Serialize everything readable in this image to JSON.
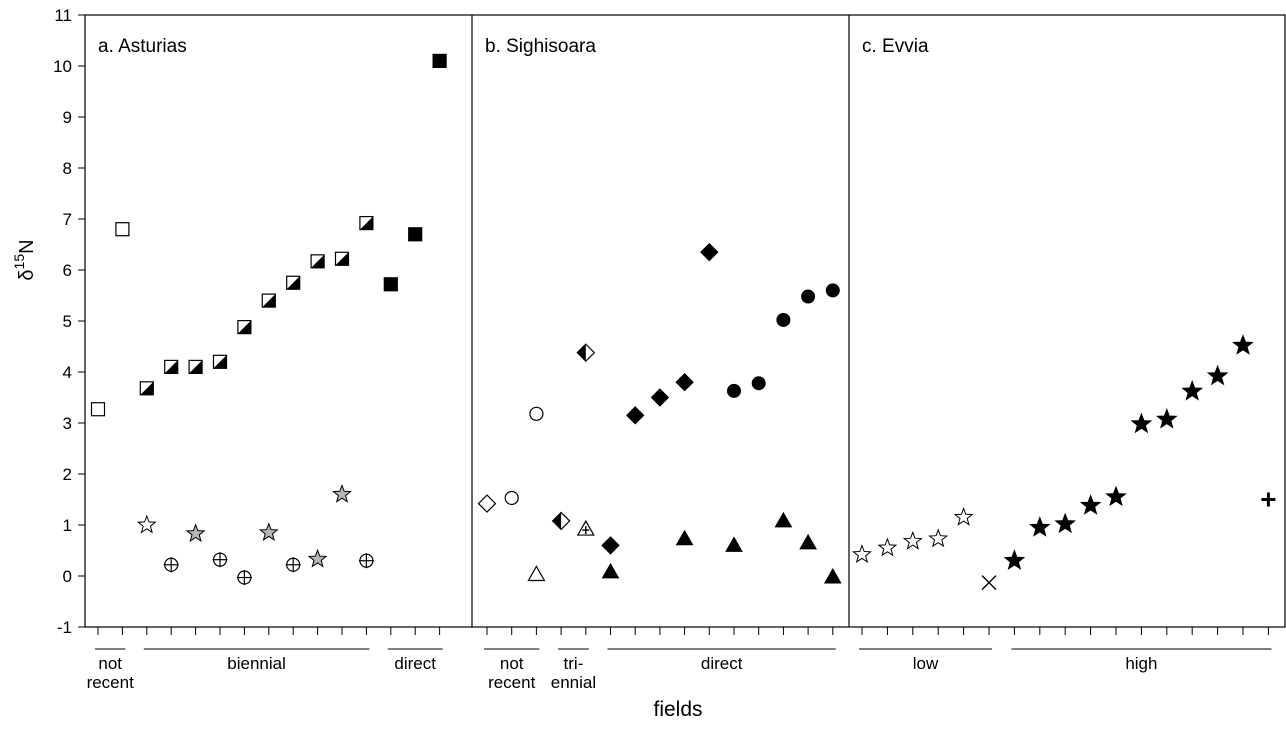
{
  "chart_data": {
    "type": "scatter",
    "xlabel": "fields",
    "ylabel": "δ15N",
    "ylim": [
      -1,
      11
    ],
    "yticks": [
      "-1",
      "0",
      "1",
      "2",
      "3",
      "4",
      "5",
      "6",
      "7",
      "8",
      "9",
      "10",
      "11"
    ],
    "panels": [
      {
        "title": "a. Asturias",
        "ticks": 15,
        "groups": [
          {
            "label": [
              "not",
              "recent"
            ],
            "from": 0,
            "to": 1
          },
          {
            "label": [
              "biennial"
            ],
            "from": 2,
            "to": 11
          },
          {
            "label": [
              "direct"
            ],
            "from": 12,
            "to": 14
          }
        ],
        "points": [
          {
            "x": 0,
            "y": 3.27,
            "marker": "square-open"
          },
          {
            "x": 1,
            "y": 6.8,
            "marker": "square-open"
          },
          {
            "x": 2,
            "y": 3.68,
            "marker": "square-half"
          },
          {
            "x": 2,
            "y": 1.0,
            "marker": "star-open"
          },
          {
            "x": 3,
            "y": 4.1,
            "marker": "square-half"
          },
          {
            "x": 3,
            "y": 0.22,
            "marker": "circle-cross"
          },
          {
            "x": 4,
            "y": 4.1,
            "marker": "square-half"
          },
          {
            "x": 4,
            "y": 0.83,
            "marker": "star-gray"
          },
          {
            "x": 5,
            "y": 4.2,
            "marker": "square-half"
          },
          {
            "x": 5,
            "y": 0.32,
            "marker": "circle-cross"
          },
          {
            "x": 6,
            "y": 4.88,
            "marker": "square-half"
          },
          {
            "x": 6,
            "y": -0.03,
            "marker": "circle-cross"
          },
          {
            "x": 7,
            "y": 5.4,
            "marker": "square-half"
          },
          {
            "x": 7,
            "y": 0.85,
            "marker": "star-gray"
          },
          {
            "x": 8,
            "y": 5.75,
            "marker": "square-half"
          },
          {
            "x": 8,
            "y": 0.22,
            "marker": "circle-cross"
          },
          {
            "x": 9,
            "y": 6.17,
            "marker": "square-half"
          },
          {
            "x": 9,
            "y": 0.33,
            "marker": "star-gray"
          },
          {
            "x": 10,
            "y": 6.22,
            "marker": "square-half"
          },
          {
            "x": 10,
            "y": 1.6,
            "marker": "star-gray"
          },
          {
            "x": 11,
            "y": 6.92,
            "marker": "square-half"
          },
          {
            "x": 11,
            "y": 0.3,
            "marker": "circle-cross"
          },
          {
            "x": 12,
            "y": 5.72,
            "marker": "square-filled"
          },
          {
            "x": 13,
            "y": 6.7,
            "marker": "square-filled"
          },
          {
            "x": 14,
            "y": 10.1,
            "marker": "square-filled"
          }
        ]
      },
      {
        "title": "b. Sighisoara",
        "ticks": 15,
        "groups": [
          {
            "label": [
              "not",
              "recent"
            ],
            "from": 0,
            "to": 2
          },
          {
            "label": [
              "tri-",
              "ennial"
            ],
            "from": 3,
            "to": 4
          },
          {
            "label": [
              "direct"
            ],
            "from": 5,
            "to": 14
          }
        ],
        "points": [
          {
            "x": 0,
            "y": 1.42,
            "marker": "diamond-open"
          },
          {
            "x": 1,
            "y": 1.53,
            "marker": "circle-open"
          },
          {
            "x": 2,
            "y": 3.18,
            "marker": "circle-open"
          },
          {
            "x": 2,
            "y": 0.03,
            "marker": "triangle-open"
          },
          {
            "x": 3,
            "y": 1.08,
            "marker": "diamond-half"
          },
          {
            "x": 4,
            "y": 4.38,
            "marker": "diamond-half"
          },
          {
            "x": 4,
            "y": 0.92,
            "marker": "triangle-plus"
          },
          {
            "x": 5,
            "y": 0.6,
            "marker": "diamond-filled"
          },
          {
            "x": 5,
            "y": 0.08,
            "marker": "triangle-filled"
          },
          {
            "x": 6,
            "y": 3.15,
            "marker": "diamond-filled"
          },
          {
            "x": 7,
            "y": 3.5,
            "marker": "diamond-filled"
          },
          {
            "x": 8,
            "y": 3.8,
            "marker": "diamond-filled"
          },
          {
            "x": 8,
            "y": 0.73,
            "marker": "triangle-filled"
          },
          {
            "x": 9,
            "y": 6.35,
            "marker": "diamond-filled"
          },
          {
            "x": 10,
            "y": 3.63,
            "marker": "circle-filled"
          },
          {
            "x": 10,
            "y": 0.6,
            "marker": "triangle-filled"
          },
          {
            "x": 11,
            "y": 3.78,
            "marker": "circle-filled"
          },
          {
            "x": 12,
            "y": 5.02,
            "marker": "circle-filled"
          },
          {
            "x": 12,
            "y": 1.08,
            "marker": "triangle-filled"
          },
          {
            "x": 13,
            "y": 5.48,
            "marker": "circle-filled"
          },
          {
            "x": 13,
            "y": 0.65,
            "marker": "triangle-filled"
          },
          {
            "x": 14,
            "y": 5.6,
            "marker": "circle-filled"
          },
          {
            "x": 14,
            "y": -0.02,
            "marker": "triangle-filled"
          }
        ]
      },
      {
        "title": "c. Evvia",
        "ticks": 17,
        "groups": [
          {
            "label": [
              "low"
            ],
            "from": 0,
            "to": 5
          },
          {
            "label": [
              "high"
            ],
            "from": 6,
            "to": 16
          }
        ],
        "points": [
          {
            "x": 0,
            "y": 0.42,
            "marker": "star-open"
          },
          {
            "x": 1,
            "y": 0.55,
            "marker": "star-open"
          },
          {
            "x": 2,
            "y": 0.68,
            "marker": "star-open"
          },
          {
            "x": 3,
            "y": 0.73,
            "marker": "star-open"
          },
          {
            "x": 4,
            "y": 1.15,
            "marker": "star-open"
          },
          {
            "x": 5,
            "y": -0.13,
            "marker": "x-mark"
          },
          {
            "x": 6,
            "y": 0.3,
            "marker": "star-filled"
          },
          {
            "x": 7,
            "y": 0.95,
            "marker": "star-filled"
          },
          {
            "x": 8,
            "y": 1.02,
            "marker": "star-filled"
          },
          {
            "x": 9,
            "y": 1.38,
            "marker": "star-filled"
          },
          {
            "x": 10,
            "y": 1.55,
            "marker": "star-filled"
          },
          {
            "x": 11,
            "y": 2.98,
            "marker": "star-filled"
          },
          {
            "x": 12,
            "y": 3.07,
            "marker": "star-filled"
          },
          {
            "x": 13,
            "y": 3.62,
            "marker": "star-filled"
          },
          {
            "x": 14,
            "y": 3.92,
            "marker": "star-filled"
          },
          {
            "x": 15,
            "y": 4.52,
            "marker": "star-filled"
          },
          {
            "x": 16,
            "y": 1.5,
            "marker": "plus-mark"
          }
        ]
      }
    ]
  }
}
